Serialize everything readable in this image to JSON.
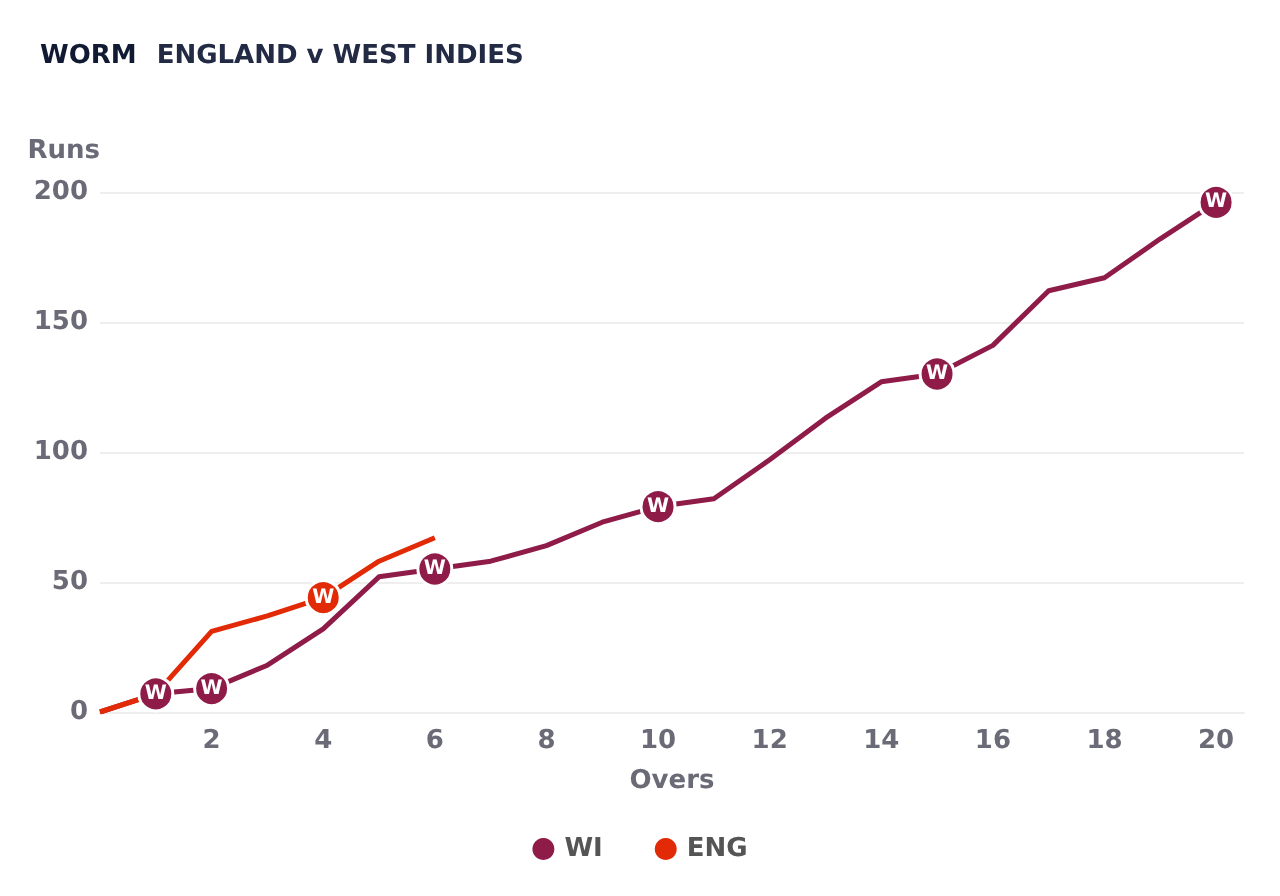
{
  "chart_data": {
    "type": "line",
    "title": "WORM",
    "subtitle": "ENGLAND v WEST INDIES",
    "xlabel": "Overs",
    "ylabel": "Runs",
    "x": [
      0,
      1,
      2,
      3,
      4,
      5,
      6,
      7,
      8,
      9,
      10,
      11,
      12,
      13,
      14,
      15,
      16,
      17,
      18,
      19,
      20
    ],
    "series": [
      {
        "name": "WI",
        "color": "#8e1b48",
        "values": [
          0,
          7,
          9,
          18,
          32,
          52,
          55,
          58,
          64,
          73,
          79,
          82,
          97,
          113,
          127,
          130,
          141,
          162,
          167,
          182,
          196
        ]
      },
      {
        "name": "ENG",
        "color": "#e22a06",
        "x": [
          0,
          1,
          2,
          3,
          4,
          5,
          6
        ],
        "values": [
          0,
          7,
          31,
          37,
          44,
          58,
          67
        ]
      }
    ],
    "annotations": [
      {
        "text": "W",
        "x": 1,
        "y": 7
      },
      {
        "text": "W",
        "x": 2,
        "y": 9
      },
      {
        "text": "W",
        "x": 6,
        "y": 55
      },
      {
        "text": "W",
        "x": 10,
        "y": 79
      },
      {
        "text": "W",
        "x": 15,
        "y": 130
      },
      {
        "text": "W",
        "x": 20,
        "y": 196
      },
      {
        "text": "W",
        "x": 4,
        "y": 44
      }
    ],
    "xlim": [
      0,
      20.5
    ],
    "xticks": [
      2,
      4,
      6,
      8,
      10,
      12,
      14,
      16,
      18,
      20
    ],
    "ylim": [
      0,
      200
    ],
    "yticks": [
      0,
      50,
      100,
      150,
      200
    ],
    "grid": "y",
    "legend": "bottom",
    "marker": "none",
    "line_style": "solid"
  }
}
